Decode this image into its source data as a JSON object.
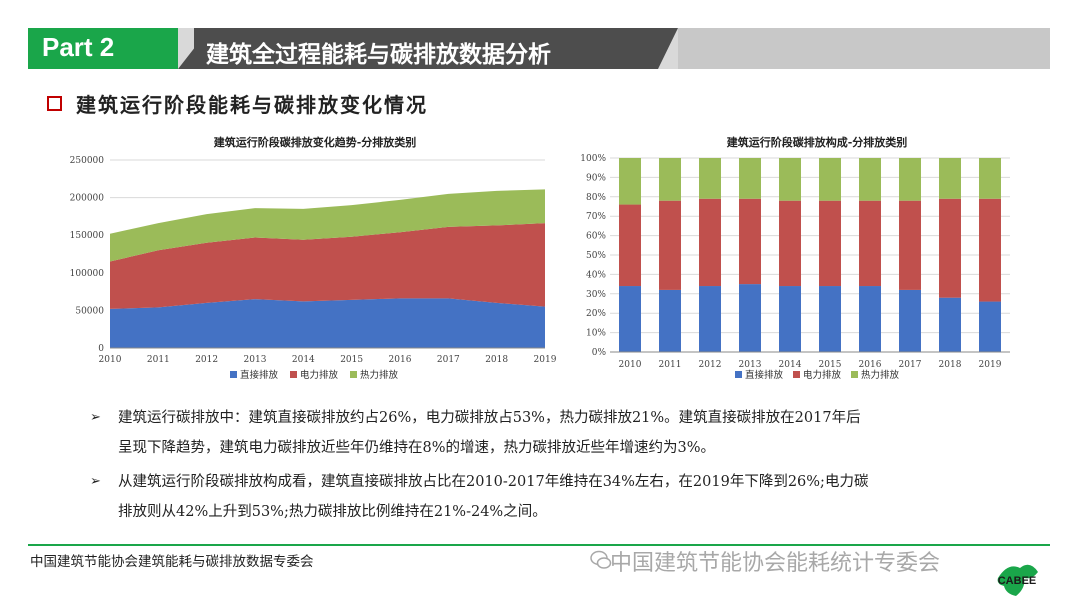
{
  "header": {
    "part_label": "Part 2",
    "title": "建筑全过程能耗与碳排放数据分析"
  },
  "section": {
    "title": "建筑运行阶段能耗与碳排放变化情况"
  },
  "chart_data": [
    {
      "type": "area",
      "stacked": true,
      "title": "建筑运行阶段碳排放变化趋势-分排放类别",
      "x": [
        "2010",
        "2011",
        "2012",
        "2013",
        "2014",
        "2015",
        "2016",
        "2017",
        "2018",
        "2019"
      ],
      "ylim": [
        0,
        250000
      ],
      "yticks": [
        0,
        50000,
        100000,
        150000,
        200000,
        250000
      ],
      "ytick_labels": [
        "0",
        "50000",
        "100000",
        "150000",
        "200000",
        "250000"
      ],
      "grid": true,
      "legend": "bottom",
      "series": [
        {
          "name": "直接排放",
          "color": "#4472c4",
          "values": [
            52000,
            54000,
            60000,
            65000,
            62000,
            64000,
            66000,
            66000,
            60000,
            55000
          ]
        },
        {
          "name": "电力排放",
          "color": "#c0504d",
          "values": [
            63000,
            76000,
            80000,
            82000,
            82000,
            84000,
            88000,
            95000,
            103000,
            111000
          ]
        },
        {
          "name": "热力排放",
          "color": "#9bbb59",
          "values": [
            37000,
            36000,
            38000,
            39000,
            41000,
            42000,
            43000,
            44000,
            46000,
            45000
          ]
        }
      ]
    },
    {
      "type": "bar",
      "stacked": true,
      "title": "建筑运行阶段碳排放构成-分排放类别",
      "categories": [
        "2010",
        "2011",
        "2012",
        "2013",
        "2014",
        "2015",
        "2016",
        "2017",
        "2018",
        "2019"
      ],
      "ylim": [
        0,
        100
      ],
      "yticks": [
        0,
        10,
        20,
        30,
        40,
        50,
        60,
        70,
        80,
        90,
        100
      ],
      "ytick_labels": [
        "0%",
        "10%",
        "20%",
        "30%",
        "40%",
        "50%",
        "60%",
        "70%",
        "80%",
        "90%",
        "100%"
      ],
      "grid": true,
      "legend": "bottom",
      "series": [
        {
          "name": "直接排放",
          "color": "#4472c4",
          "values": [
            34,
            32,
            34,
            35,
            34,
            34,
            34,
            32,
            28,
            26
          ]
        },
        {
          "name": "电力排放",
          "color": "#c0504d",
          "values": [
            42,
            46,
            45,
            44,
            44,
            44,
            44,
            46,
            51,
            53
          ]
        },
        {
          "name": "热力排放",
          "color": "#9bbb59",
          "values": [
            24,
            22,
            21,
            21,
            22,
            22,
            22,
            22,
            21,
            21
          ]
        }
      ]
    }
  ],
  "bullets": [
    {
      "line1": "建筑运行碳排放中：建筑直接碳排放约占26%，电力碳排放占53%，热力碳排放21%。建筑直接碳排放在2017年后",
      "line2": "呈现下降趋势，建筑电力碳排放近些年仍维持在8%的增速，热力碳排放近些年增速约为3%。"
    },
    {
      "line1": "从建筑运行阶段碳排放构成看，建筑直接碳排放占比在2010-2017年维持在34%左右，在2019年下降到26%;电力碳",
      "line2": "排放则从42%上升到53%;热力碳排放比例维持在21%-24%之间。"
    }
  ],
  "bullet_marker": "➢",
  "footer": {
    "org": "中国建筑节能协会建筑能耗与碳排放数据专委会",
    "watermark": "中国建筑节能协会能耗统计专委会",
    "logo_text": "CABEE"
  },
  "colors": {
    "accent_green": "#1aa64a",
    "header_dark": "#4d4d4d",
    "section_red": "#c00000"
  }
}
